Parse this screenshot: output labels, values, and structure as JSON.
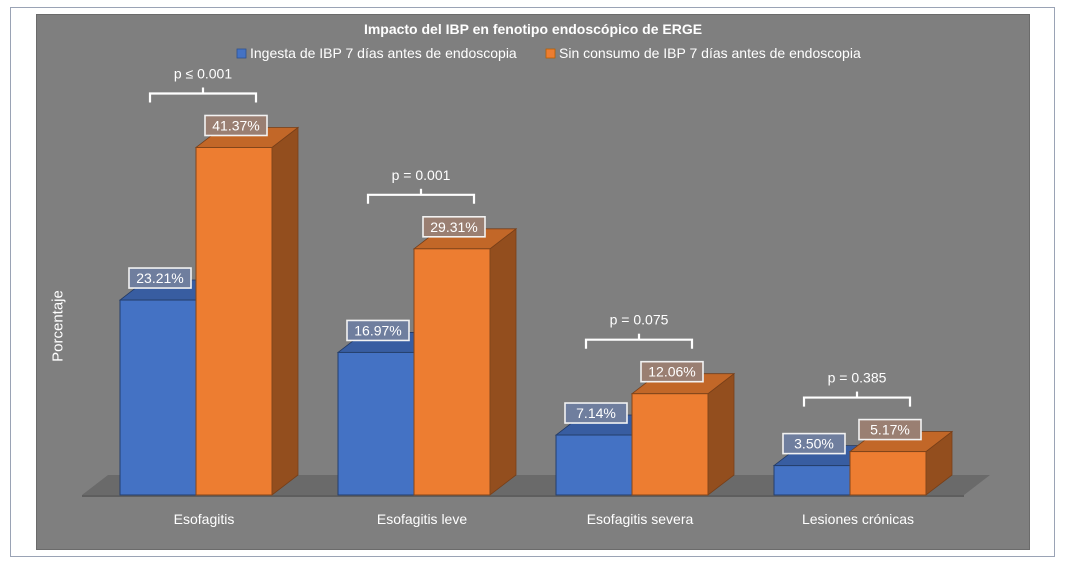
{
  "chart_data": {
    "type": "bar",
    "title": "Impacto del IBP en fenotipo endoscópico de ERGE",
    "xlabel": "",
    "ylabel": "Porcentaje",
    "categories": [
      "Esofagitis",
      "Esofagitis leve",
      "Esofagitis severa",
      "Lesiones crónicas"
    ],
    "series": [
      {
        "name": "Ingesta de IBP 7 días antes de endoscopia",
        "values": [
          23.21,
          16.97,
          7.14,
          3.5
        ],
        "labels": [
          "23.21%",
          "16.97%",
          "7.14%",
          "3.50%"
        ],
        "color": "#4472c4"
      },
      {
        "name": "Sin consumo de IBP 7 días antes de endoscopia",
        "values": [
          41.37,
          29.31,
          12.06,
          5.17
        ],
        "labels": [
          "41.37%",
          "29.31%",
          "12.06%",
          "5.17%"
        ],
        "color": "#ed7d31"
      }
    ],
    "p_values": [
      "p ≤ 0.001",
      "p = 0.001",
      "p = 0.075",
      "p = 0.385"
    ],
    "ylim": [
      0,
      45
    ],
    "legend_position": "top",
    "grid": false
  },
  "colors": {
    "background": "#7f7f7f",
    "floor": "#6a6a6a",
    "text": "#ffffff",
    "label_box": "#6f7b8f"
  }
}
